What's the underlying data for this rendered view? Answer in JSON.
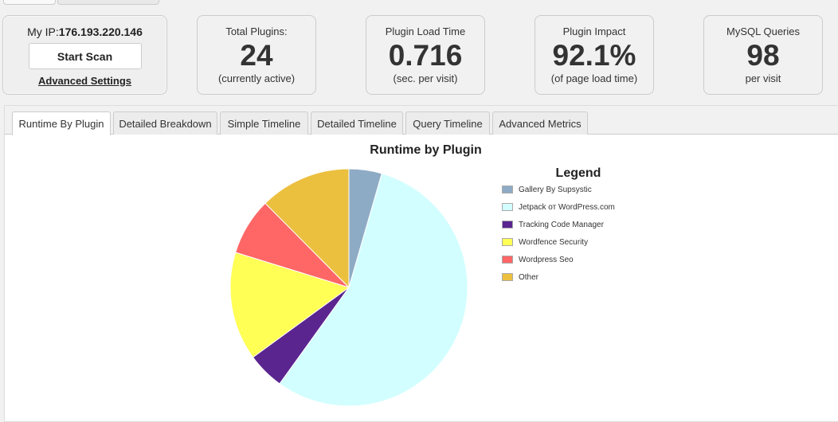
{
  "scan": {
    "ip_prefix": "My IP:",
    "ip_value": "176.193.220.146",
    "start_scan_label": "Start Scan",
    "advanced_settings_label": "Advanced Settings"
  },
  "stats": [
    {
      "label": "Total Plugins:",
      "value": "24",
      "sub": "(currently active)"
    },
    {
      "label": "Plugin Load Time",
      "value": "0.716",
      "sub": "(sec. per visit)"
    },
    {
      "label": "Plugin Impact",
      "value": "92.1%",
      "sub": "(of page load time)"
    },
    {
      "label": "MySQL Queries",
      "value": "98",
      "sub": "per visit"
    }
  ],
  "tabs": [
    {
      "label": "Runtime By Plugin",
      "active": true
    },
    {
      "label": "Detailed Breakdown"
    },
    {
      "label": "Simple Timeline"
    },
    {
      "label": "Detailed Timeline"
    },
    {
      "label": "Query Timeline"
    },
    {
      "label": "Advanced Metrics"
    }
  ],
  "chart_data": {
    "type": "pie",
    "title": "Runtime by Plugin",
    "legend_title": "Legend",
    "legend_position": "right",
    "categories": [
      "Gallery By Supsystic",
      "Jetpack от WordPress.com",
      "Tracking Code Manager",
      "Wordfence Security",
      "Wordpress Seo",
      "Other"
    ],
    "values": [
      4.6,
      57.0,
      5.2,
      15.2,
      8.0,
      12.8
    ],
    "colors": [
      "#8eabc5",
      "#d2feff",
      "#5b2590",
      "#ffff55",
      "#ff6666",
      "#ecc03f"
    ]
  }
}
